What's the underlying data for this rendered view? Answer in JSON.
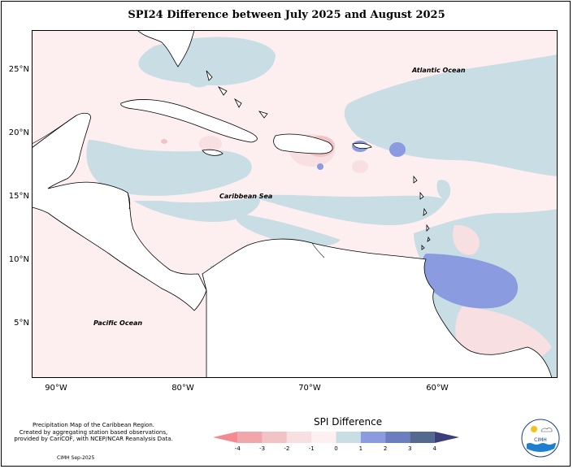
{
  "title": "SPI24 Difference between July 2025 and August 2025",
  "labels": {
    "atlantic": "Atlantic Ocean",
    "caribbean": "Caribbean Sea",
    "pacific": "Pacific Ocean"
  },
  "lat_ticks": [
    "25°N",
    "20°N",
    "15°N",
    "10°N",
    "5°N"
  ],
  "lon_ticks": [
    "90°W",
    "80°W",
    "70°W",
    "60°W"
  ],
  "footer": {
    "line1": "Precipitation Map of the Caribbean Region.",
    "line2": "Created by aggregating station based observations,",
    "line3": "provided by CariCOF, with NCEP/NCAR Reanalysis Data.",
    "credit": "CIMH Sep-2025"
  },
  "legend": {
    "title": "SPI Difference",
    "ticks": [
      "-4",
      "-3",
      "-2",
      "-1",
      "0",
      "1",
      "2",
      "3",
      "4"
    ],
    "colors": [
      "#f48a8f",
      "#f0a6aa",
      "#f2c3c5",
      "#f8dfe1",
      "#fdf0f1",
      "#c9dde4",
      "#8a9be0",
      "#6b7fc0",
      "#55688f",
      "#3c3e7a"
    ]
  },
  "logo": {
    "name": "CIMH",
    "colors": {
      "sun": "#f3c21a",
      "water": "#1e7fd1",
      "text": "#1b3c8f"
    }
  }
}
